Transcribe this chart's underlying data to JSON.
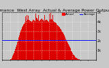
{
  "title": "Performance  West Array  Actual & Average Power Output",
  "bg_color": "#c8c8c8",
  "plot_bg_color": "#c8c8c8",
  "bar_color": "#dd0000",
  "avg_line_color": "#0000ff",
  "avg_line_value": 0.42,
  "ylim": [
    0.0,
    1.0
  ],
  "xlim": [
    0,
    144
  ],
  "num_bars": 144,
  "bar_heights": [
    0.0,
    0.0,
    0.0,
    0.0,
    0.0,
    0.0,
    0.0,
    0.0,
    0.0,
    0.0,
    0.0,
    0.0,
    0.01,
    0.02,
    0.04,
    0.06,
    0.08,
    0.11,
    0.15,
    0.19,
    0.23,
    0.27,
    0.32,
    0.37,
    0.42,
    0.47,
    0.52,
    0.57,
    0.62,
    0.65,
    0.68,
    0.71,
    0.74,
    0.76,
    0.78,
    0.8,
    0.81,
    0.82,
    0.83,
    0.84,
    0.85,
    0.84,
    0.83,
    0.82,
    0.81,
    0.8,
    0.82,
    0.84,
    0.85,
    0.83,
    0.81,
    0.86,
    0.88,
    0.87,
    0.85,
    0.83,
    0.82,
    0.83,
    0.85,
    0.86,
    0.88,
    0.87,
    0.85,
    0.84,
    0.82,
    0.81,
    0.83,
    0.85,
    0.84,
    0.83,
    0.82,
    0.8,
    0.82,
    0.85,
    0.88,
    0.86,
    0.84,
    0.82,
    0.81,
    0.8,
    0.79,
    0.78,
    0.77,
    0.75,
    0.74,
    0.73,
    0.71,
    0.7,
    0.68,
    0.66,
    0.64,
    0.62,
    0.59,
    0.57,
    0.54,
    0.51,
    0.48,
    0.45,
    0.42,
    0.39,
    0.36,
    0.33,
    0.3,
    0.27,
    0.25,
    0.22,
    0.19,
    0.17,
    0.14,
    0.12,
    0.1,
    0.08,
    0.06,
    0.05,
    0.04,
    0.03,
    0.02,
    0.01,
    0.01,
    0.0,
    0.0,
    0.0,
    0.0,
    0.0,
    0.0,
    0.0,
    0.0,
    0.0,
    0.0,
    0.0,
    0.0,
    0.0,
    0.0,
    0.0,
    0.0,
    0.0,
    0.0,
    0.0,
    0.0,
    0.0,
    0.0,
    0.0,
    0.0,
    0.0
  ],
  "spike_indices": [
    35,
    37,
    40,
    51,
    55,
    60,
    65,
    72,
    74,
    77
  ],
  "spike_heights": [
    0.92,
    0.95,
    0.93,
    0.97,
    0.95,
    0.97,
    0.94,
    0.97,
    0.98,
    0.95
  ],
  "ytick_labels": [
    "1k",
    "2k",
    "3k",
    "4k",
    "5k"
  ],
  "ytick_positions": [
    0.2,
    0.4,
    0.6,
    0.8,
    1.0
  ],
  "grid_color": "#ffffff",
  "grid_linestyle": "dotted",
  "num_vgrid": 13,
  "num_hgrid": 6,
  "legend_actual_color": "#ff0000",
  "legend_avg_color": "#0000ff",
  "legend_actual_label": "Actual",
  "legend_avg_label": "Average",
  "title_fontsize": 4.5,
  "tick_fontsize": 3.5
}
